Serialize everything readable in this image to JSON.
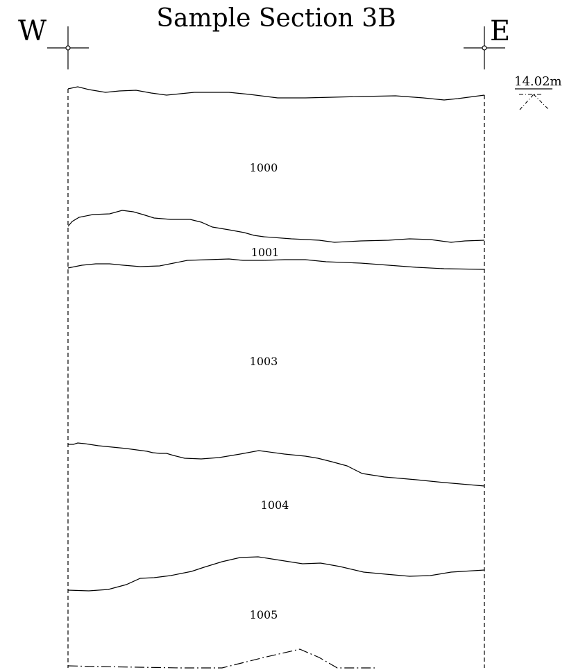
{
  "drawing": {
    "title": "Sample Section 3B",
    "west_label": "W",
    "east_label": "E",
    "elevation": "14.02m"
  },
  "contexts": [
    "1000",
    "1001",
    "1003",
    "1004",
    "1005"
  ]
}
